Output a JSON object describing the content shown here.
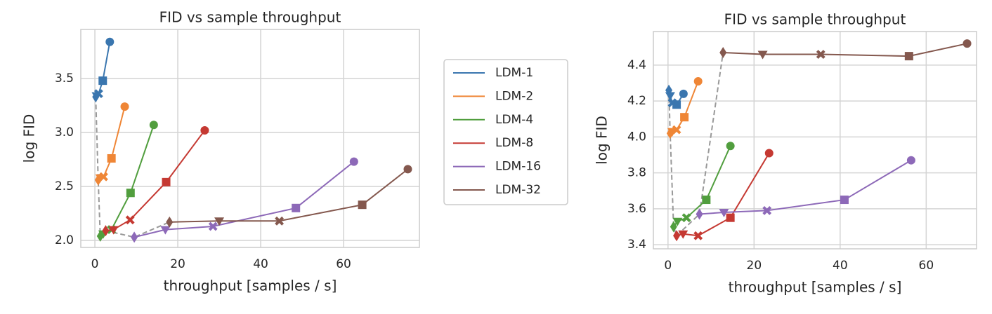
{
  "chart_data": [
    {
      "type": "scatter",
      "title": "FID vs sample throughput",
      "xlabel": "throughput [samples / s]",
      "ylabel": "log FID",
      "xlim": [
        -3.4,
        78.3
      ],
      "ylim": [
        1.935,
        3.955
      ],
      "xticks": [
        0,
        20,
        40,
        60
      ],
      "yticks": [
        {
          "value": 2.0,
          "label": "2.0"
        },
        2.5,
        {
          "value": 3.0,
          "label": "3.0"
        },
        3.5
      ],
      "grid": true,
      "legend": true,
      "markers": [
        "circle",
        "square",
        "x",
        "triangle-down",
        "diamond"
      ],
      "series": [
        {
          "name": "LDM-1",
          "color": "#3a76af",
          "x": [
            3.6,
            1.9,
            0.9,
            0.4,
            0.2
          ],
          "values": [
            3.84,
            3.48,
            3.36,
            3.34,
            3.33
          ]
        },
        {
          "name": "LDM-2",
          "color": "#ef8636",
          "x": [
            7.2,
            4.0,
            2.1,
            1.3,
            0.8
          ],
          "values": [
            3.24,
            2.76,
            2.59,
            2.58,
            2.56
          ]
        },
        {
          "name": "LDM-4",
          "color": "#519e3e",
          "x": [
            14.2,
            8.6,
            4.0,
            2.0,
            1.3
          ],
          "values": [
            3.07,
            2.44,
            2.1,
            2.06,
            2.04
          ]
        },
        {
          "name": "LDM-8",
          "color": "#c53932",
          "x": [
            26.5,
            17.2,
            8.5,
            4.5,
            2.6
          ],
          "values": [
            3.02,
            2.54,
            2.19,
            2.1,
            2.09
          ]
        },
        {
          "name": "LDM-16",
          "color": "#8d69b8",
          "x": [
            62.5,
            48.5,
            28.5,
            17.0,
            9.5
          ],
          "values": [
            2.73,
            2.3,
            2.13,
            2.1,
            2.03
          ]
        },
        {
          "name": "LDM-32",
          "color": "#84584e",
          "x": [
            75.5,
            64.5,
            44.5,
            30.0,
            18.0
          ],
          "values": [
            2.66,
            2.33,
            2.18,
            2.18,
            2.17
          ]
        }
      ]
    },
    {
      "type": "scatter",
      "title": "FID vs sample throughput",
      "xlabel": "throughput [samples / s]",
      "ylabel": "log FID",
      "xlim": [
        -3.4,
        71.7
      ],
      "ylim": [
        3.377,
        4.587
      ],
      "xticks": [
        0,
        20,
        40,
        60
      ],
      "yticks": [
        3.4,
        3.6,
        3.8,
        {
          "value": 4.0,
          "label": "4.0"
        },
        4.2,
        4.4
      ],
      "grid": true,
      "markers": [
        "circle",
        "square",
        "x",
        "triangle-down",
        "diamond"
      ],
      "series": [
        {
          "color": "#3a76af",
          "x": [
            3.6,
            2.0,
            1.0,
            0.5,
            0.2
          ],
          "values": [
            4.24,
            4.18,
            4.19,
            4.23,
            4.26
          ]
        },
        {
          "color": "#ef8636",
          "x": [
            7.0,
            3.8,
            2.0,
            1.0,
            0.5
          ],
          "values": [
            4.31,
            4.11,
            4.04,
            4.03,
            4.02
          ]
        },
        {
          "color": "#519e3e",
          "x": [
            14.5,
            8.9,
            4.3,
            2.2,
            1.3
          ],
          "values": [
            3.95,
            3.65,
            3.55,
            3.53,
            3.5
          ]
        },
        {
          "color": "#c53932",
          "x": [
            23.5,
            14.5,
            7.0,
            3.5,
            2.0
          ],
          "values": [
            3.91,
            3.55,
            3.45,
            3.46,
            3.45
          ]
        },
        {
          "color": "#8d69b8",
          "x": [
            56.5,
            41.0,
            23.0,
            13.0,
            7.3
          ],
          "values": [
            3.87,
            3.65,
            3.59,
            3.58,
            3.57
          ]
        },
        {
          "color": "#84584e",
          "x": [
            69.5,
            56.0,
            35.5,
            22.0,
            12.8
          ],
          "values": [
            4.52,
            4.45,
            4.46,
            4.46,
            4.47
          ]
        }
      ]
    }
  ]
}
